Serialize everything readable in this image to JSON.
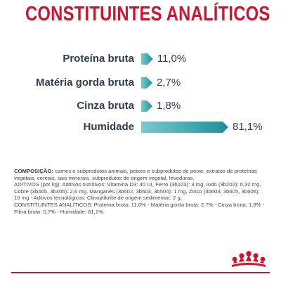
{
  "title": "CONSTITUINTES ANALÍTICOS",
  "chart_data": {
    "type": "bar",
    "orientation": "horizontal",
    "categories": [
      "Proteína bruta",
      "Matéria gorda bruta",
      "Cinza bruta",
      "Humidade"
    ],
    "values": [
      11.0,
      2.7,
      1.8,
      81.1
    ],
    "value_labels": [
      "11,0%",
      "2,7%",
      "1,8%",
      "81,1%"
    ],
    "unit": "%",
    "xlim": [
      0,
      81.1
    ],
    "grid": false,
    "legend": "none",
    "bar_color": "#3fa8b0"
  },
  "composition": {
    "heading": "COMPOSIÇÃO:",
    "text": " carnes e subprodutos animais, peixes e subprodutos de peixe, extratos de proteínas vegetais, cereais, sais minerais, subprodutos de origem vegetal, leveduras.",
    "additives": "ADITIVOS (por kg): Aditivos nutritivos: Vitamina D3: 40 UI, Ferro (3b103): 3 mg, Iodo (3b202): 0,32 mg, Cobre (3b405, 3b406): 2,6 mg, Manganês (3b502, 3b503, 3b504): 1 mg, Zinco (3b603, 3b605, 3b606): 10 mg - Aditivos tecnológicos: Clinoptilolite de origem sedimentar: 2 g.",
    "analytical": "CONSTITUINTES ANALÍTICOS: Proteína bruta: 11,0% - Matéria gorda bruta: 2,7% - Cinza bruta: 1,8% - Fibra bruta: 0,7% - Humidade: 81,1%."
  },
  "colors": {
    "brand": "#d2122e",
    "text": "#2c3e50",
    "bar": "#3fa8b0"
  },
  "logo": {
    "name": "royal-canin-crown-icon"
  }
}
